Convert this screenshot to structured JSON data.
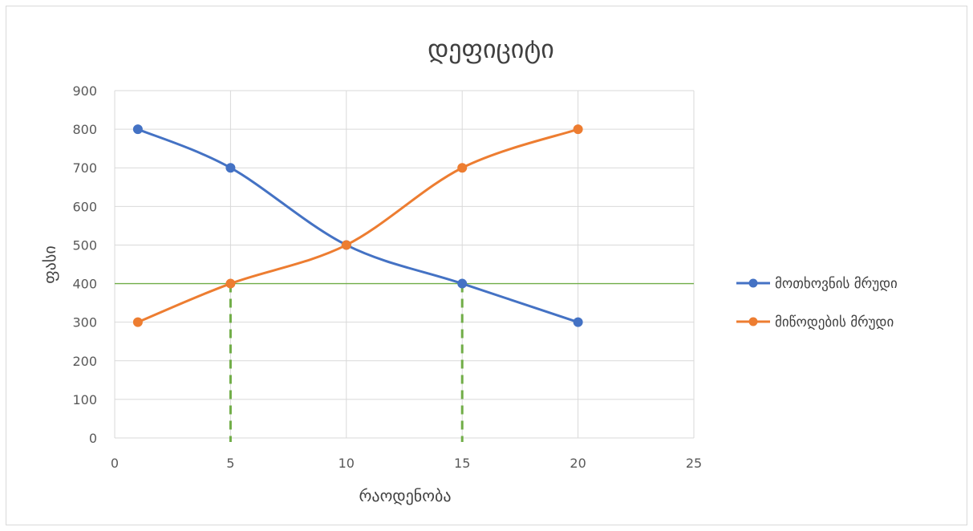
{
  "chart_data": {
    "type": "scatter",
    "title": "დეფიციტი",
    "xlabel": "რაოდენობა",
    "ylabel": "ფასი",
    "xlim": [
      0,
      25
    ],
    "ylim": [
      0,
      900
    ],
    "x_ticks": [
      "0",
      "5",
      "10",
      "15",
      "20",
      "25"
    ],
    "y_ticks": [
      "0",
      "100",
      "200",
      "300",
      "400",
      "500",
      "600",
      "700",
      "800",
      "900"
    ],
    "grid": true,
    "legend_position": "right",
    "series": [
      {
        "name": "მოთხოვნის მრუდი",
        "color": "#4472c4",
        "points": [
          [
            1,
            800
          ],
          [
            5,
            700
          ],
          [
            10,
            500
          ],
          [
            15,
            400
          ],
          [
            20,
            300
          ]
        ],
        "smooth": true
      },
      {
        "name": "მიწოდების მრუდი",
        "color": "#ed7d31",
        "points": [
          [
            1,
            300
          ],
          [
            5,
            400
          ],
          [
            10,
            500
          ],
          [
            15,
            700
          ],
          [
            20,
            800
          ]
        ],
        "smooth": true
      }
    ],
    "annotations": {
      "price_line": {
        "y": 400,
        "color": "#70ad47"
      },
      "drop_lines": {
        "x": [
          5,
          15
        ],
        "color": "#70ad47"
      }
    }
  }
}
